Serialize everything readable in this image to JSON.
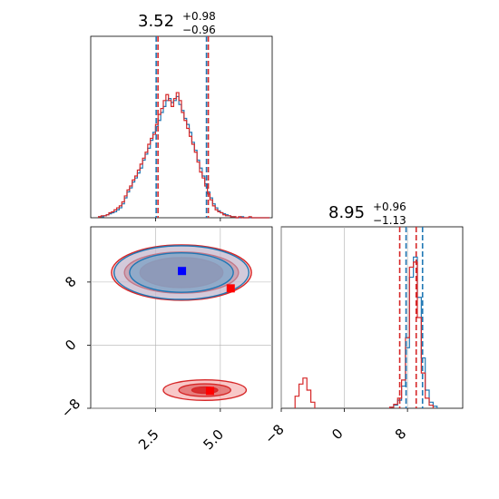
{
  "chart_data": {
    "type": "corner",
    "colors": {
      "series_a": "#1f77b4",
      "series_b": "#d62728"
    },
    "params": [
      {
        "title_main": "3.52",
        "title_plus": "+0.98",
        "title_minus": "−0.96",
        "range": [
          0,
          7
        ]
      },
      {
        "title_main": "8.95",
        "title_plus": "+0.96",
        "title_minus": "−1.13",
        "range": [
          -8,
          15
        ]
      }
    ],
    "x_ticks": [
      {
        "value": 2.5,
        "label": "2.5"
      },
      {
        "value": 5.0,
        "label": "5.0"
      }
    ],
    "y_ticks": [
      {
        "value": -8,
        "label": "−8"
      },
      {
        "value": 0,
        "label": "0"
      },
      {
        "value": 8,
        "label": "8"
      }
    ],
    "x2_ticks": [
      {
        "value": -8,
        "label": "−8"
      },
      {
        "value": 0,
        "label": "0"
      },
      {
        "value": 8,
        "label": "8"
      }
    ],
    "hist_1d_param1": {
      "bins_start": 0.3,
      "bin_width": 0.1,
      "series_a": [
        1,
        1,
        2,
        3,
        4,
        5,
        6,
        8,
        10,
        14,
        20,
        26,
        30,
        36,
        40,
        45,
        50,
        58,
        64,
        70,
        78,
        86,
        92,
        98,
        106,
        112,
        118,
        120,
        116,
        118,
        122,
        114,
        108,
        100,
        94,
        86,
        76,
        68,
        58,
        50,
        42,
        34,
        26,
        20,
        14,
        10,
        7,
        5,
        4,
        3,
        2,
        1,
        1,
        0,
        0,
        1,
        0,
        0,
        0,
        0,
        0,
        0,
        0,
        0,
        0,
        0
      ],
      "series_b": [
        1,
        2,
        2,
        3,
        5,
        6,
        8,
        10,
        12,
        16,
        22,
        28,
        32,
        38,
        42,
        48,
        54,
        60,
        66,
        74,
        80,
        84,
        94,
        104,
        110,
        118,
        124,
        118,
        112,
        120,
        126,
        118,
        106,
        98,
        90,
        82,
        74,
        66,
        56,
        46,
        40,
        32,
        24,
        18,
        12,
        8,
        6,
        5,
        3,
        2,
        2,
        1,
        1,
        0,
        1,
        0,
        0,
        0,
        1,
        0,
        0,
        0,
        0,
        0,
        0,
        0
      ],
      "quantiles_a": [
        2.56,
        3.52,
        4.5
      ],
      "quantiles_b": [
        2.56,
        3.52,
        4.5
      ]
    },
    "hist_1d_param2": {
      "bins_start": -8,
      "bin_width": 0.3,
      "series_b_extra": [
        {
          "x": -6.0,
          "count": 2
        },
        {
          "x": -5.5,
          "count": 4
        },
        {
          "x": -5.0,
          "count": 5
        },
        {
          "x": -4.5,
          "count": 3
        },
        {
          "x": -4.0,
          "count": 1
        }
      ],
      "peak_a": [
        {
          "x": 6.0,
          "count": 1
        },
        {
          "x": 6.5,
          "count": 3
        },
        {
          "x": 7.0,
          "count": 8
        },
        {
          "x": 7.5,
          "count": 22
        },
        {
          "x": 8.0,
          "count": 60
        },
        {
          "x": 8.5,
          "count": 130
        },
        {
          "x": 9.0,
          "count": 150
        },
        {
          "x": 9.5,
          "count": 110
        },
        {
          "x": 10.0,
          "count": 50
        },
        {
          "x": 10.5,
          "count": 18
        },
        {
          "x": 11.0,
          "count": 6
        },
        {
          "x": 11.5,
          "count": 2
        }
      ],
      "peak_b": [
        {
          "x": 6.0,
          "count": 1
        },
        {
          "x": 6.5,
          "count": 4
        },
        {
          "x": 7.0,
          "count": 10
        },
        {
          "x": 7.5,
          "count": 28
        },
        {
          "x": 8.0,
          "count": 70
        },
        {
          "x": 8.5,
          "count": 140
        },
        {
          "x": 9.0,
          "count": 145
        },
        {
          "x": 9.5,
          "count": 90
        },
        {
          "x": 10.0,
          "count": 35
        },
        {
          "x": 10.5,
          "count": 10
        },
        {
          "x": 11.0,
          "count": 3
        }
      ],
      "quantiles_a": [
        7.82,
        8.95,
        9.91
      ],
      "quantiles_b": [
        7.82,
        8.95,
        9.91
      ]
    },
    "hist_2d": {
      "truth_points": [
        {
          "series": "series_a",
          "x": 3.52,
          "y": 9.4
        },
        {
          "series": "series_b",
          "x": 5.4,
          "y": 7.2
        },
        {
          "series": "series_b",
          "x": 4.6,
          "y": -5.8
        }
      ],
      "contours_a": [
        {
          "cx": 3.5,
          "cy": 9.2,
          "rx": 2.6,
          "ry": 3.4,
          "fill": "#aec7e8",
          "opacity": 0.5
        },
        {
          "cx": 3.5,
          "cy": 9.2,
          "rx": 2.0,
          "ry": 2.5,
          "fill": "#6baed6",
          "opacity": 0.6
        }
      ],
      "contours_b_main": [
        {
          "cx": 3.5,
          "cy": 9.2,
          "rx": 2.7,
          "ry": 3.5,
          "fill": "#f4a3a3",
          "opacity": 0.55
        },
        {
          "cx": 3.5,
          "cy": 9.2,
          "rx": 2.2,
          "ry": 2.6,
          "fill": "#e06666",
          "opacity": 0.7
        },
        {
          "cx": 3.5,
          "cy": 9.2,
          "rx": 1.6,
          "ry": 1.9,
          "fill": "#d62728",
          "opacity": 0.85
        }
      ],
      "contours_b_low": [
        {
          "cx": 4.4,
          "cy": -5.7,
          "rx": 1.6,
          "ry": 1.3,
          "fill": "#f4a3a3",
          "opacity": 0.6
        },
        {
          "cx": 4.4,
          "cy": -5.7,
          "rx": 1.0,
          "ry": 0.8,
          "fill": "#e06666",
          "opacity": 0.75
        },
        {
          "cx": 4.4,
          "cy": -5.7,
          "rx": 0.5,
          "ry": 0.4,
          "fill": "#d62728",
          "opacity": 0.9
        }
      ]
    },
    "grid": true
  }
}
